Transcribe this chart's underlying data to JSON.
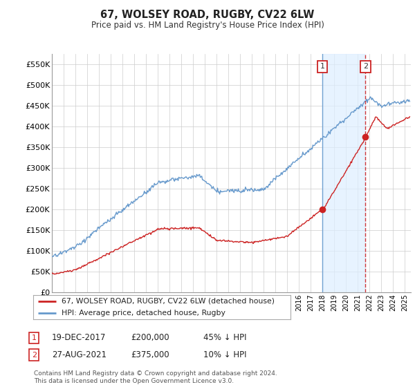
{
  "title": "67, WOLSEY ROAD, RUGBY, CV22 6LW",
  "subtitle": "Price paid vs. HM Land Registry's House Price Index (HPI)",
  "ylabel_ticks": [
    "£0",
    "£50K",
    "£100K",
    "£150K",
    "£200K",
    "£250K",
    "£300K",
    "£350K",
    "£400K",
    "£450K",
    "£500K",
    "£550K"
  ],
  "ytick_vals": [
    0,
    50000,
    100000,
    150000,
    200000,
    250000,
    300000,
    350000,
    400000,
    450000,
    500000,
    550000
  ],
  "ylim": [
    0,
    575000
  ],
  "xlim_start": 1995.0,
  "xlim_end": 2025.5,
  "hpi_color": "#6699cc",
  "price_color": "#cc2222",
  "marker1_color": "#6699cc",
  "marker2_color": "#cc2222",
  "shade_color": "#ddeeff",
  "marker1_date": 2017.97,
  "marker1_price": 200000,
  "marker2_date": 2021.65,
  "marker2_price": 375000,
  "legend_line1": "67, WOLSEY ROAD, RUGBY, CV22 6LW (detached house)",
  "legend_line2": "HPI: Average price, detached house, Rugby",
  "annotation1": "19-DEC-2017",
  "annotation1_price": "£200,000",
  "annotation1_hpi": "45% ↓ HPI",
  "annotation2": "27-AUG-2021",
  "annotation2_price": "£375,000",
  "annotation2_hpi": "10% ↓ HPI",
  "footnote": "Contains HM Land Registry data © Crown copyright and database right 2024.\nThis data is licensed under the Open Government Licence v3.0.",
  "bg_color": "#ffffff",
  "grid_color": "#cccccc"
}
